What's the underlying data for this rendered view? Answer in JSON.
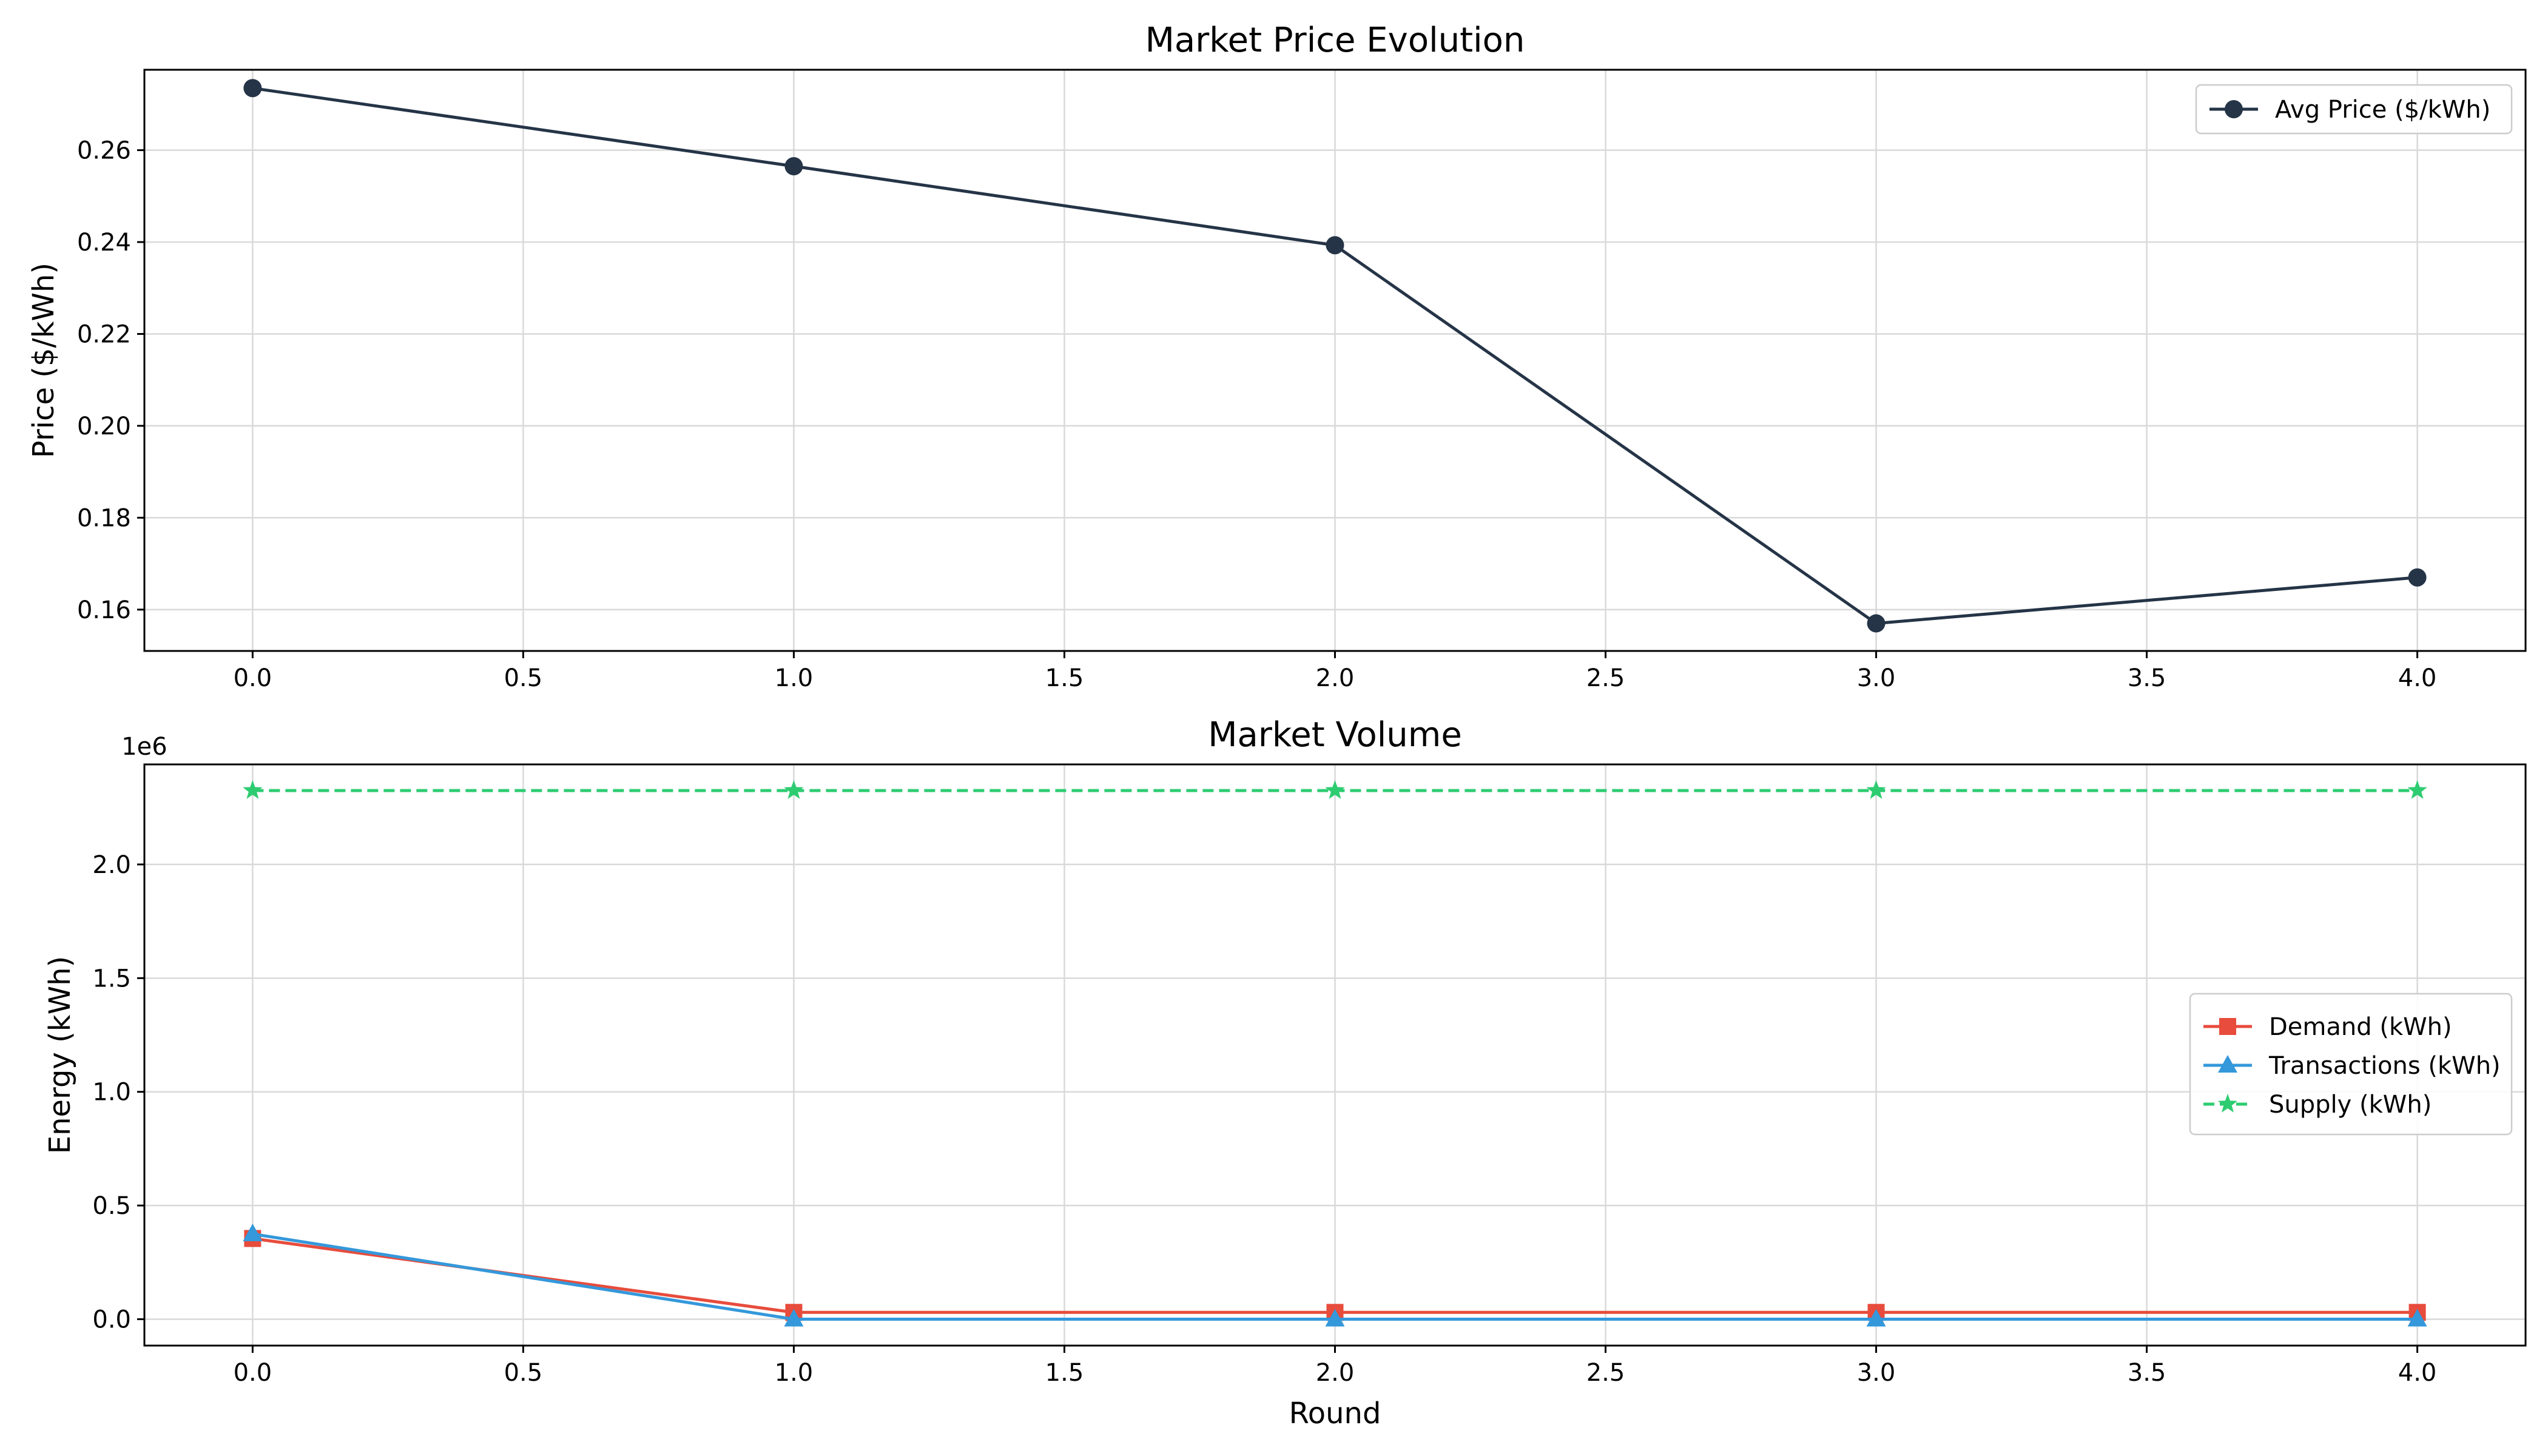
{
  "chart_data": [
    {
      "type": "line",
      "title": "Market Price Evolution",
      "xlabel": "",
      "ylabel": "Price ($/kWh)",
      "xlim": [
        -0.2,
        4.2
      ],
      "ylim": [
        0.151,
        0.2775
      ],
      "xticks": [
        0.0,
        0.5,
        1.0,
        1.5,
        2.0,
        2.5,
        3.0,
        3.5,
        4.0
      ],
      "xtick_labels": [
        "0.0",
        "0.5",
        "1.0",
        "1.5",
        "2.0",
        "2.5",
        "3.0",
        "3.5",
        "4.0"
      ],
      "yticks": [
        0.16,
        0.18,
        0.2,
        0.22,
        0.24,
        0.26
      ],
      "ytick_labels": [
        "0.16",
        "0.18",
        "0.20",
        "0.22",
        "0.24",
        "0.26"
      ],
      "grid": true,
      "legend_position": "top-right",
      "offset_text": "",
      "x": [
        0,
        1,
        2,
        3,
        4
      ],
      "series": [
        {
          "name": "Avg Price ($/kWh)",
          "values": [
            0.2735,
            0.2565,
            0.2393,
            0.157,
            0.167
          ],
          "color": "#253447",
          "marker": "circle",
          "dash": "solid"
        }
      ]
    },
    {
      "type": "line",
      "title": "Market Volume",
      "xlabel": "Round",
      "ylabel": "Energy (kWh)",
      "xlim": [
        -0.2,
        4.2
      ],
      "ylim": [
        -0.116,
        2.44
      ],
      "xticks": [
        0.0,
        0.5,
        1.0,
        1.5,
        2.0,
        2.5,
        3.0,
        3.5,
        4.0
      ],
      "xtick_labels": [
        "0.0",
        "0.5",
        "1.0",
        "1.5",
        "2.0",
        "2.5",
        "3.0",
        "3.5",
        "4.0"
      ],
      "yticks": [
        0.0,
        0.5,
        1.0,
        1.5,
        2.0
      ],
      "ytick_labels": [
        "0.0",
        "0.5",
        "1.0",
        "1.5",
        "2.0"
      ],
      "grid": true,
      "legend_position": "center-right",
      "offset_text": "1e6",
      "x": [
        0,
        1,
        2,
        3,
        4
      ],
      "series": [
        {
          "name": "Demand (kWh)",
          "values": [
            0.355,
            0.03,
            0.03,
            0.03,
            0.03
          ],
          "color": "#e74c3c",
          "marker": "square",
          "dash": "solid"
        },
        {
          "name": "Transactions (kWh)",
          "values": [
            0.375,
            0.0,
            0.0,
            0.0,
            0.0
          ],
          "color": "#3498db",
          "marker": "triangle",
          "dash": "solid"
        },
        {
          "name": "Supply (kWh)",
          "values": [
            2.325,
            2.325,
            2.325,
            2.325,
            2.325
          ],
          "color": "#2ecc71",
          "marker": "star",
          "dash": "dashed"
        }
      ]
    }
  ]
}
